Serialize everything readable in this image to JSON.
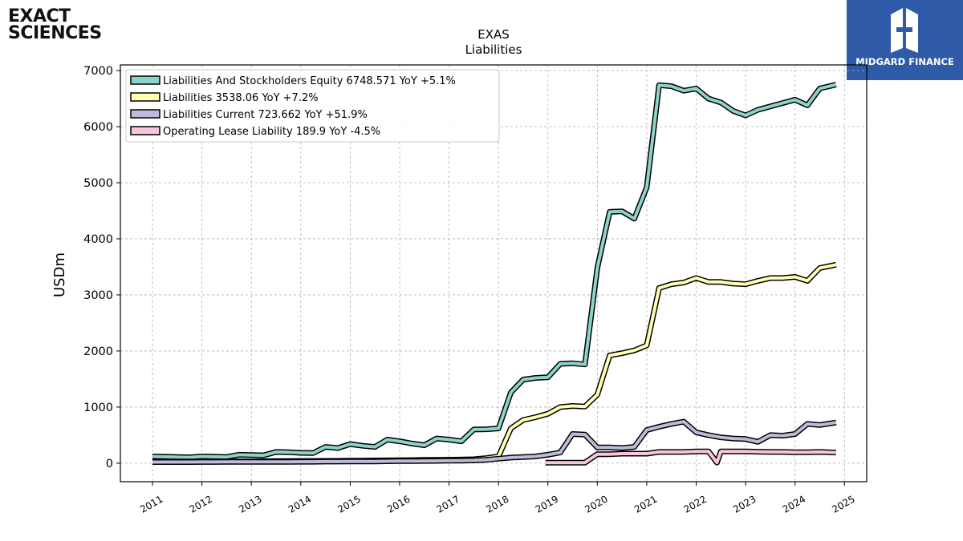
{
  "branding": {
    "company_logo_line1": "EXACT",
    "company_logo_line2": "SCIENCES",
    "partner_logo_text": "MIDGARD FINANCE"
  },
  "chart_data": {
    "type": "line",
    "title": "EXAS",
    "subtitle": "Liabilities",
    "ylabel": "USDm",
    "xlabel": "",
    "ylim": [
      -330,
      7100
    ],
    "xlim": [
      2010.35,
      2025.45
    ],
    "yticks": [
      0,
      1000,
      2000,
      3000,
      4000,
      5000,
      6000,
      7000
    ],
    "xticks": [
      "2011",
      "2012",
      "2013",
      "2014",
      "2015",
      "2016",
      "2017",
      "2018",
      "2019",
      "2020",
      "2021",
      "2022",
      "2023",
      "2024",
      "2025"
    ],
    "grid": true,
    "legend_position": "top-left",
    "series": [
      {
        "name": "Liabilities And Stockholders Equity",
        "legend": "Liabilities And Stockholders Equity  6748.571 YoY +5.1%",
        "color": "#8dd3c7",
        "points": [
          [
            2011.0,
            120
          ],
          [
            2011.25,
            115
          ],
          [
            2011.5,
            110
          ],
          [
            2011.75,
            105
          ],
          [
            2012.0,
            120
          ],
          [
            2012.25,
            115
          ],
          [
            2012.5,
            110
          ],
          [
            2012.75,
            150
          ],
          [
            2013.0,
            145
          ],
          [
            2013.25,
            140
          ],
          [
            2013.5,
            200
          ],
          [
            2013.75,
            195
          ],
          [
            2014.0,
            185
          ],
          [
            2014.25,
            180
          ],
          [
            2014.5,
            290
          ],
          [
            2014.75,
            270
          ],
          [
            2015.0,
            340
          ],
          [
            2015.25,
            310
          ],
          [
            2015.5,
            290
          ],
          [
            2015.75,
            420
          ],
          [
            2016.0,
            390
          ],
          [
            2016.25,
            350
          ],
          [
            2016.5,
            320
          ],
          [
            2016.75,
            440
          ],
          [
            2017.0,
            420
          ],
          [
            2017.25,
            390
          ],
          [
            2017.5,
            600
          ],
          [
            2017.75,
            605
          ],
          [
            2018.0,
            620
          ],
          [
            2018.25,
            1260
          ],
          [
            2018.5,
            1490
          ],
          [
            2018.75,
            1520
          ],
          [
            2019.0,
            1530
          ],
          [
            2019.25,
            1770
          ],
          [
            2019.5,
            1780
          ],
          [
            2019.75,
            1760
          ],
          [
            2020.0,
            3480
          ],
          [
            2020.25,
            4480
          ],
          [
            2020.5,
            4490
          ],
          [
            2020.75,
            4360
          ],
          [
            2021.0,
            4920
          ],
          [
            2021.25,
            6740
          ],
          [
            2021.5,
            6720
          ],
          [
            2021.75,
            6640
          ],
          [
            2022.0,
            6680
          ],
          [
            2022.25,
            6500
          ],
          [
            2022.5,
            6430
          ],
          [
            2022.75,
            6280
          ],
          [
            2023.0,
            6200
          ],
          [
            2023.25,
            6300
          ],
          [
            2023.5,
            6360
          ],
          [
            2023.75,
            6420
          ],
          [
            2024.0,
            6480
          ],
          [
            2024.25,
            6380
          ],
          [
            2024.5,
            6680
          ],
          [
            2024.83,
            6749
          ]
        ]
      },
      {
        "name": "Liabilities",
        "legend": "Liabilities  3538.06 YoY +7.2%",
        "color": "#ffffb3",
        "points": [
          [
            2011.0,
            30
          ],
          [
            2011.25,
            30
          ],
          [
            2011.5,
            30
          ],
          [
            2011.75,
            30
          ],
          [
            2012.0,
            32
          ],
          [
            2012.25,
            32
          ],
          [
            2012.5,
            33
          ],
          [
            2012.75,
            33
          ],
          [
            2013.0,
            33
          ],
          [
            2013.25,
            35
          ],
          [
            2013.5,
            38
          ],
          [
            2013.75,
            38
          ],
          [
            2014.0,
            40
          ],
          [
            2014.25,
            40
          ],
          [
            2014.5,
            42
          ],
          [
            2014.75,
            42
          ],
          [
            2015.0,
            45
          ],
          [
            2015.25,
            45
          ],
          [
            2015.5,
            48
          ],
          [
            2015.75,
            50
          ],
          [
            2016.0,
            52
          ],
          [
            2016.25,
            55
          ],
          [
            2016.5,
            58
          ],
          [
            2016.75,
            60
          ],
          [
            2017.0,
            62
          ],
          [
            2017.25,
            65
          ],
          [
            2017.5,
            70
          ],
          [
            2017.75,
            90
          ],
          [
            2018.0,
            120
          ],
          [
            2018.25,
            620
          ],
          [
            2018.5,
            770
          ],
          [
            2018.75,
            820
          ],
          [
            2019.0,
            880
          ],
          [
            2019.25,
            1000
          ],
          [
            2019.5,
            1020
          ],
          [
            2019.75,
            1010
          ],
          [
            2020.0,
            1220
          ],
          [
            2020.25,
            1920
          ],
          [
            2020.5,
            1960
          ],
          [
            2020.75,
            2010
          ],
          [
            2021.0,
            2100
          ],
          [
            2021.25,
            3120
          ],
          [
            2021.5,
            3190
          ],
          [
            2021.75,
            3220
          ],
          [
            2022.0,
            3300
          ],
          [
            2022.25,
            3230
          ],
          [
            2022.5,
            3230
          ],
          [
            2022.75,
            3200
          ],
          [
            2023.0,
            3190
          ],
          [
            2023.25,
            3250
          ],
          [
            2023.5,
            3300
          ],
          [
            2023.75,
            3300
          ],
          [
            2024.0,
            3320
          ],
          [
            2024.25,
            3250
          ],
          [
            2024.5,
            3480
          ],
          [
            2024.83,
            3538
          ]
        ]
      },
      {
        "name": "Liabilities Current",
        "legend": "Liabilities Current  723.662 YoY +51.9%",
        "color": "#bebada",
        "points": [
          [
            2011.0,
            20
          ],
          [
            2011.25,
            20
          ],
          [
            2011.5,
            20
          ],
          [
            2011.75,
            20
          ],
          [
            2012.0,
            22
          ],
          [
            2012.25,
            22
          ],
          [
            2012.5,
            23
          ],
          [
            2012.75,
            23
          ],
          [
            2013.0,
            24
          ],
          [
            2013.25,
            24
          ],
          [
            2013.5,
            25
          ],
          [
            2013.75,
            25
          ],
          [
            2014.0,
            26
          ],
          [
            2014.25,
            26
          ],
          [
            2014.5,
            28
          ],
          [
            2014.75,
            28
          ],
          [
            2015.0,
            30
          ],
          [
            2015.25,
            30
          ],
          [
            2015.5,
            32
          ],
          [
            2015.75,
            35
          ],
          [
            2016.0,
            38
          ],
          [
            2016.25,
            38
          ],
          [
            2016.5,
            40
          ],
          [
            2016.75,
            42
          ],
          [
            2017.0,
            44
          ],
          [
            2017.25,
            46
          ],
          [
            2017.5,
            50
          ],
          [
            2017.75,
            60
          ],
          [
            2018.0,
            80
          ],
          [
            2018.25,
            100
          ],
          [
            2018.5,
            110
          ],
          [
            2018.75,
            120
          ],
          [
            2019.0,
            150
          ],
          [
            2019.25,
            190
          ],
          [
            2019.5,
            520
          ],
          [
            2019.75,
            510
          ],
          [
            2020.0,
            280
          ],
          [
            2020.25,
            280
          ],
          [
            2020.5,
            270
          ],
          [
            2020.75,
            290
          ],
          [
            2021.0,
            590
          ],
          [
            2021.25,
            650
          ],
          [
            2021.5,
            700
          ],
          [
            2021.75,
            740
          ],
          [
            2022.0,
            550
          ],
          [
            2022.25,
            500
          ],
          [
            2022.5,
            460
          ],
          [
            2022.75,
            440
          ],
          [
            2023.0,
            430
          ],
          [
            2023.25,
            380
          ],
          [
            2023.5,
            500
          ],
          [
            2023.75,
            490
          ],
          [
            2024.0,
            520
          ],
          [
            2024.25,
            700
          ],
          [
            2024.5,
            680
          ],
          [
            2024.83,
            724
          ]
        ]
      },
      {
        "name": "Operating Lease Liability",
        "legend": "Operating Lease Liability  189.9 YoY -4.5%",
        "color": "#f9c5dc",
        "points": [
          [
            2018.95,
            10
          ],
          [
            2019.25,
            10
          ],
          [
            2019.5,
            10
          ],
          [
            2019.75,
            10
          ],
          [
            2020.0,
            160
          ],
          [
            2020.25,
            160
          ],
          [
            2020.5,
            170
          ],
          [
            2020.75,
            170
          ],
          [
            2021.0,
            170
          ],
          [
            2021.25,
            200
          ],
          [
            2021.5,
            200
          ],
          [
            2021.75,
            200
          ],
          [
            2022.0,
            210
          ],
          [
            2022.25,
            210
          ],
          [
            2022.42,
            10
          ],
          [
            2022.5,
            210
          ],
          [
            2022.75,
            210
          ],
          [
            2023.0,
            210
          ],
          [
            2023.25,
            205
          ],
          [
            2023.5,
            200
          ],
          [
            2023.75,
            200
          ],
          [
            2024.0,
            195
          ],
          [
            2024.25,
            195
          ],
          [
            2024.5,
            200
          ],
          [
            2024.83,
            190
          ]
        ]
      }
    ]
  }
}
